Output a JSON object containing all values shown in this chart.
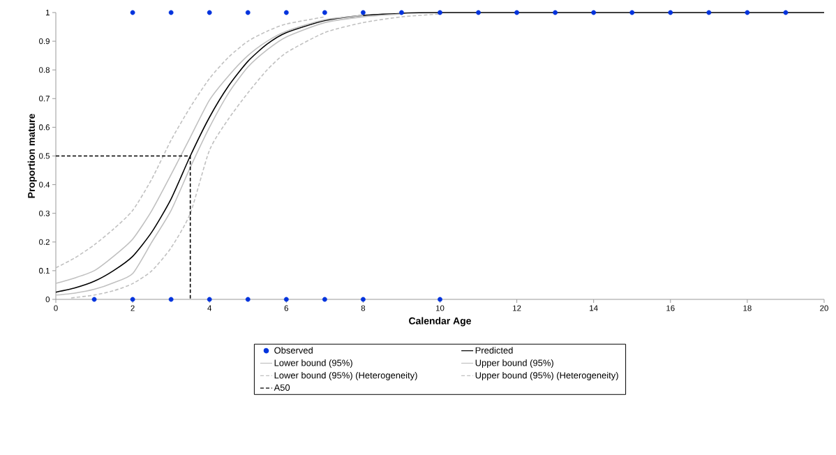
{
  "chart_data": {
    "type": "line",
    "xlabel": "Calendar Age",
    "ylabel": "Proportion mature",
    "xlim": [
      0,
      20
    ],
    "ylim": [
      0,
      1
    ],
    "xticks": [
      0,
      2,
      4,
      6,
      8,
      10,
      12,
      14,
      16,
      18,
      20
    ],
    "yticks": [
      0,
      0.1,
      0.2,
      0.3,
      0.4,
      0.5,
      0.6,
      0.7,
      0.8,
      0.9,
      1
    ],
    "legend": "bottom",
    "series": [
      {
        "name": "Observed",
        "type": "scatter",
        "marker": "circle",
        "color": "#0033dd",
        "x": [
          2,
          3,
          4,
          5,
          6,
          7,
          8,
          9,
          10,
          11,
          12,
          13,
          14,
          15,
          16,
          17,
          18,
          19,
          1,
          2,
          3,
          4,
          5,
          6,
          7,
          8,
          10
        ],
        "values": [
          1,
          1,
          1,
          1,
          1,
          1,
          1,
          1,
          1,
          1,
          1,
          1,
          1,
          1,
          1,
          1,
          1,
          1,
          0,
          0,
          0,
          0,
          0,
          0,
          0,
          0,
          0
        ]
      },
      {
        "name": "Predicted",
        "line_style": "solid",
        "color": "#000000",
        "x": [
          0,
          0.5,
          1,
          1.5,
          2,
          2.5,
          3,
          3.5,
          4,
          4.5,
          5,
          5.5,
          6,
          7,
          8,
          9,
          10,
          20
        ],
        "values": [
          0.025,
          0.04,
          0.063,
          0.1,
          0.15,
          0.235,
          0.35,
          0.5,
          0.635,
          0.745,
          0.83,
          0.89,
          0.93,
          0.972,
          0.99,
          0.997,
          1,
          1
        ]
      },
      {
        "name": "Lower bound (95%)",
        "line_style": "solid",
        "color": "#c0c0c0",
        "x": [
          0,
          0.5,
          1,
          1.5,
          2,
          2.5,
          3,
          3.5,
          4,
          4.5,
          5,
          5.5,
          6,
          7,
          8,
          9
        ],
        "values": [
          0.015,
          0.022,
          0.035,
          0.058,
          0.09,
          0.2,
          0.31,
          0.46,
          0.6,
          0.72,
          0.81,
          0.87,
          0.915,
          0.965,
          0.985,
          0.995
        ]
      },
      {
        "name": "Upper bound (95%)",
        "line_style": "solid",
        "color": "#c0c0c0",
        "x": [
          0,
          0.5,
          1,
          1.5,
          2,
          2.5,
          3,
          3.5,
          4,
          4.5,
          5,
          5.5,
          6,
          7,
          8
        ],
        "values": [
          0.056,
          0.075,
          0.1,
          0.15,
          0.21,
          0.31,
          0.435,
          0.565,
          0.695,
          0.78,
          0.85,
          0.9,
          0.935,
          0.975,
          0.99
        ]
      },
      {
        "name": "Lower bound (95%) (Heterogeneity)",
        "line_style": "dashed",
        "color": "#c0c0c0",
        "x": [
          0.4,
          1,
          1.5,
          2,
          2.5,
          3,
          3.5,
          4,
          4.5,
          5,
          5.5,
          6,
          7,
          8,
          9,
          10
        ],
        "values": [
          0.005,
          0.015,
          0.03,
          0.055,
          0.1,
          0.18,
          0.3,
          0.52,
          0.63,
          0.72,
          0.8,
          0.86,
          0.93,
          0.965,
          0.985,
          0.995
        ]
      },
      {
        "name": "Upper bound (95%) (Heterogeneity)",
        "line_style": "dashed",
        "color": "#c0c0c0",
        "x": [
          0,
          0.5,
          1,
          1.5,
          2,
          2.5,
          3,
          3.5,
          4,
          4.5,
          5,
          5.5,
          6,
          7
        ],
        "values": [
          0.11,
          0.145,
          0.19,
          0.245,
          0.31,
          0.42,
          0.555,
          0.67,
          0.77,
          0.845,
          0.9,
          0.935,
          0.96,
          0.985
        ]
      },
      {
        "name": "A50",
        "line_style": "dashed",
        "color": "#000000",
        "x": [
          0,
          3.5,
          3.5
        ],
        "values": [
          0.5,
          0.5,
          0
        ]
      }
    ]
  }
}
